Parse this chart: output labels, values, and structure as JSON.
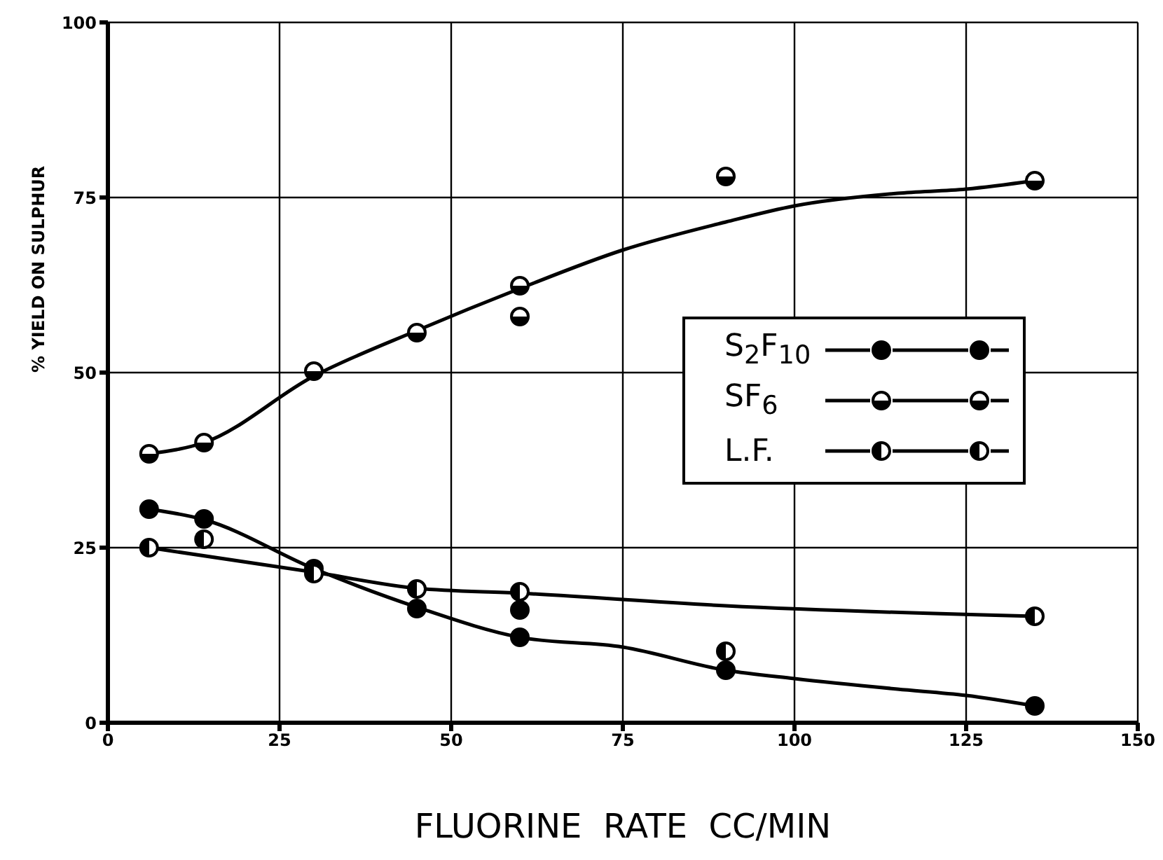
{
  "chart_data": {
    "type": "scatter",
    "xlabel": "FLUORINE  RATE  CC/MIN",
    "ylabel": "% YIELD ON SULPHUR",
    "xlim": [
      0,
      150
    ],
    "ylim": [
      0,
      100
    ],
    "xticks": [
      0,
      25,
      50,
      75,
      100,
      125,
      150
    ],
    "yticks": [
      0,
      25,
      50,
      75,
      100
    ],
    "grid": true,
    "legend": "right",
    "marker": "circle",
    "series": [
      {
        "name": "S$_{2}$F$_{10}$",
        "color": "#000000",
        "x": [
          6,
          14,
          30,
          45,
          60,
          60,
          90,
          135
        ],
        "values": [
          30.5,
          29.1,
          22,
          16.3,
          16.1,
          12.2,
          7.5,
          2.4
        ]
      },
      {
        "name": "SF$_{6}$",
        "color": "#000000",
        "x": [
          6,
          14,
          30,
          45,
          60,
          60,
          90,
          135
        ],
        "values": [
          38.4,
          40,
          50.2,
          55.7,
          62.4,
          58,
          78,
          77.4
        ]
      },
      {
        "name": "L.F.",
        "color": "#000000",
        "x": [
          6,
          14,
          30,
          45,
          60,
          90,
          135
        ],
        "values": [
          25,
          26.2,
          21.3,
          19.1,
          18.7,
          10.2,
          15.2
        ]
      },
      {
        "type": "line",
        "marker": "none",
        "color": "#000000",
        "x": [
          6,
          14,
          30,
          45,
          60,
          75,
          90,
          100,
          115,
          125,
          135
        ],
        "values": [
          30.5,
          29,
          22,
          16.5,
          12.2,
          10.8,
          7.5,
          6.3,
          4.8,
          3.9,
          2.4
        ]
      },
      {
        "type": "line",
        "marker": "none",
        "color": "#000000",
        "x": [
          6,
          14,
          30,
          45,
          60,
          75,
          90,
          100,
          115,
          125,
          135
        ],
        "values": [
          38.4,
          40,
          49.5,
          56,
          62,
          67.5,
          71.5,
          73.8,
          75.6,
          76.2,
          77.4
        ]
      },
      {
        "type": "line",
        "marker": "none",
        "color": "#000000",
        "x": [
          6,
          30,
          45,
          60,
          90,
          135
        ],
        "values": [
          25,
          21.5,
          19.2,
          18.5,
          16.7,
          15.2
        ]
      }
    ]
  }
}
